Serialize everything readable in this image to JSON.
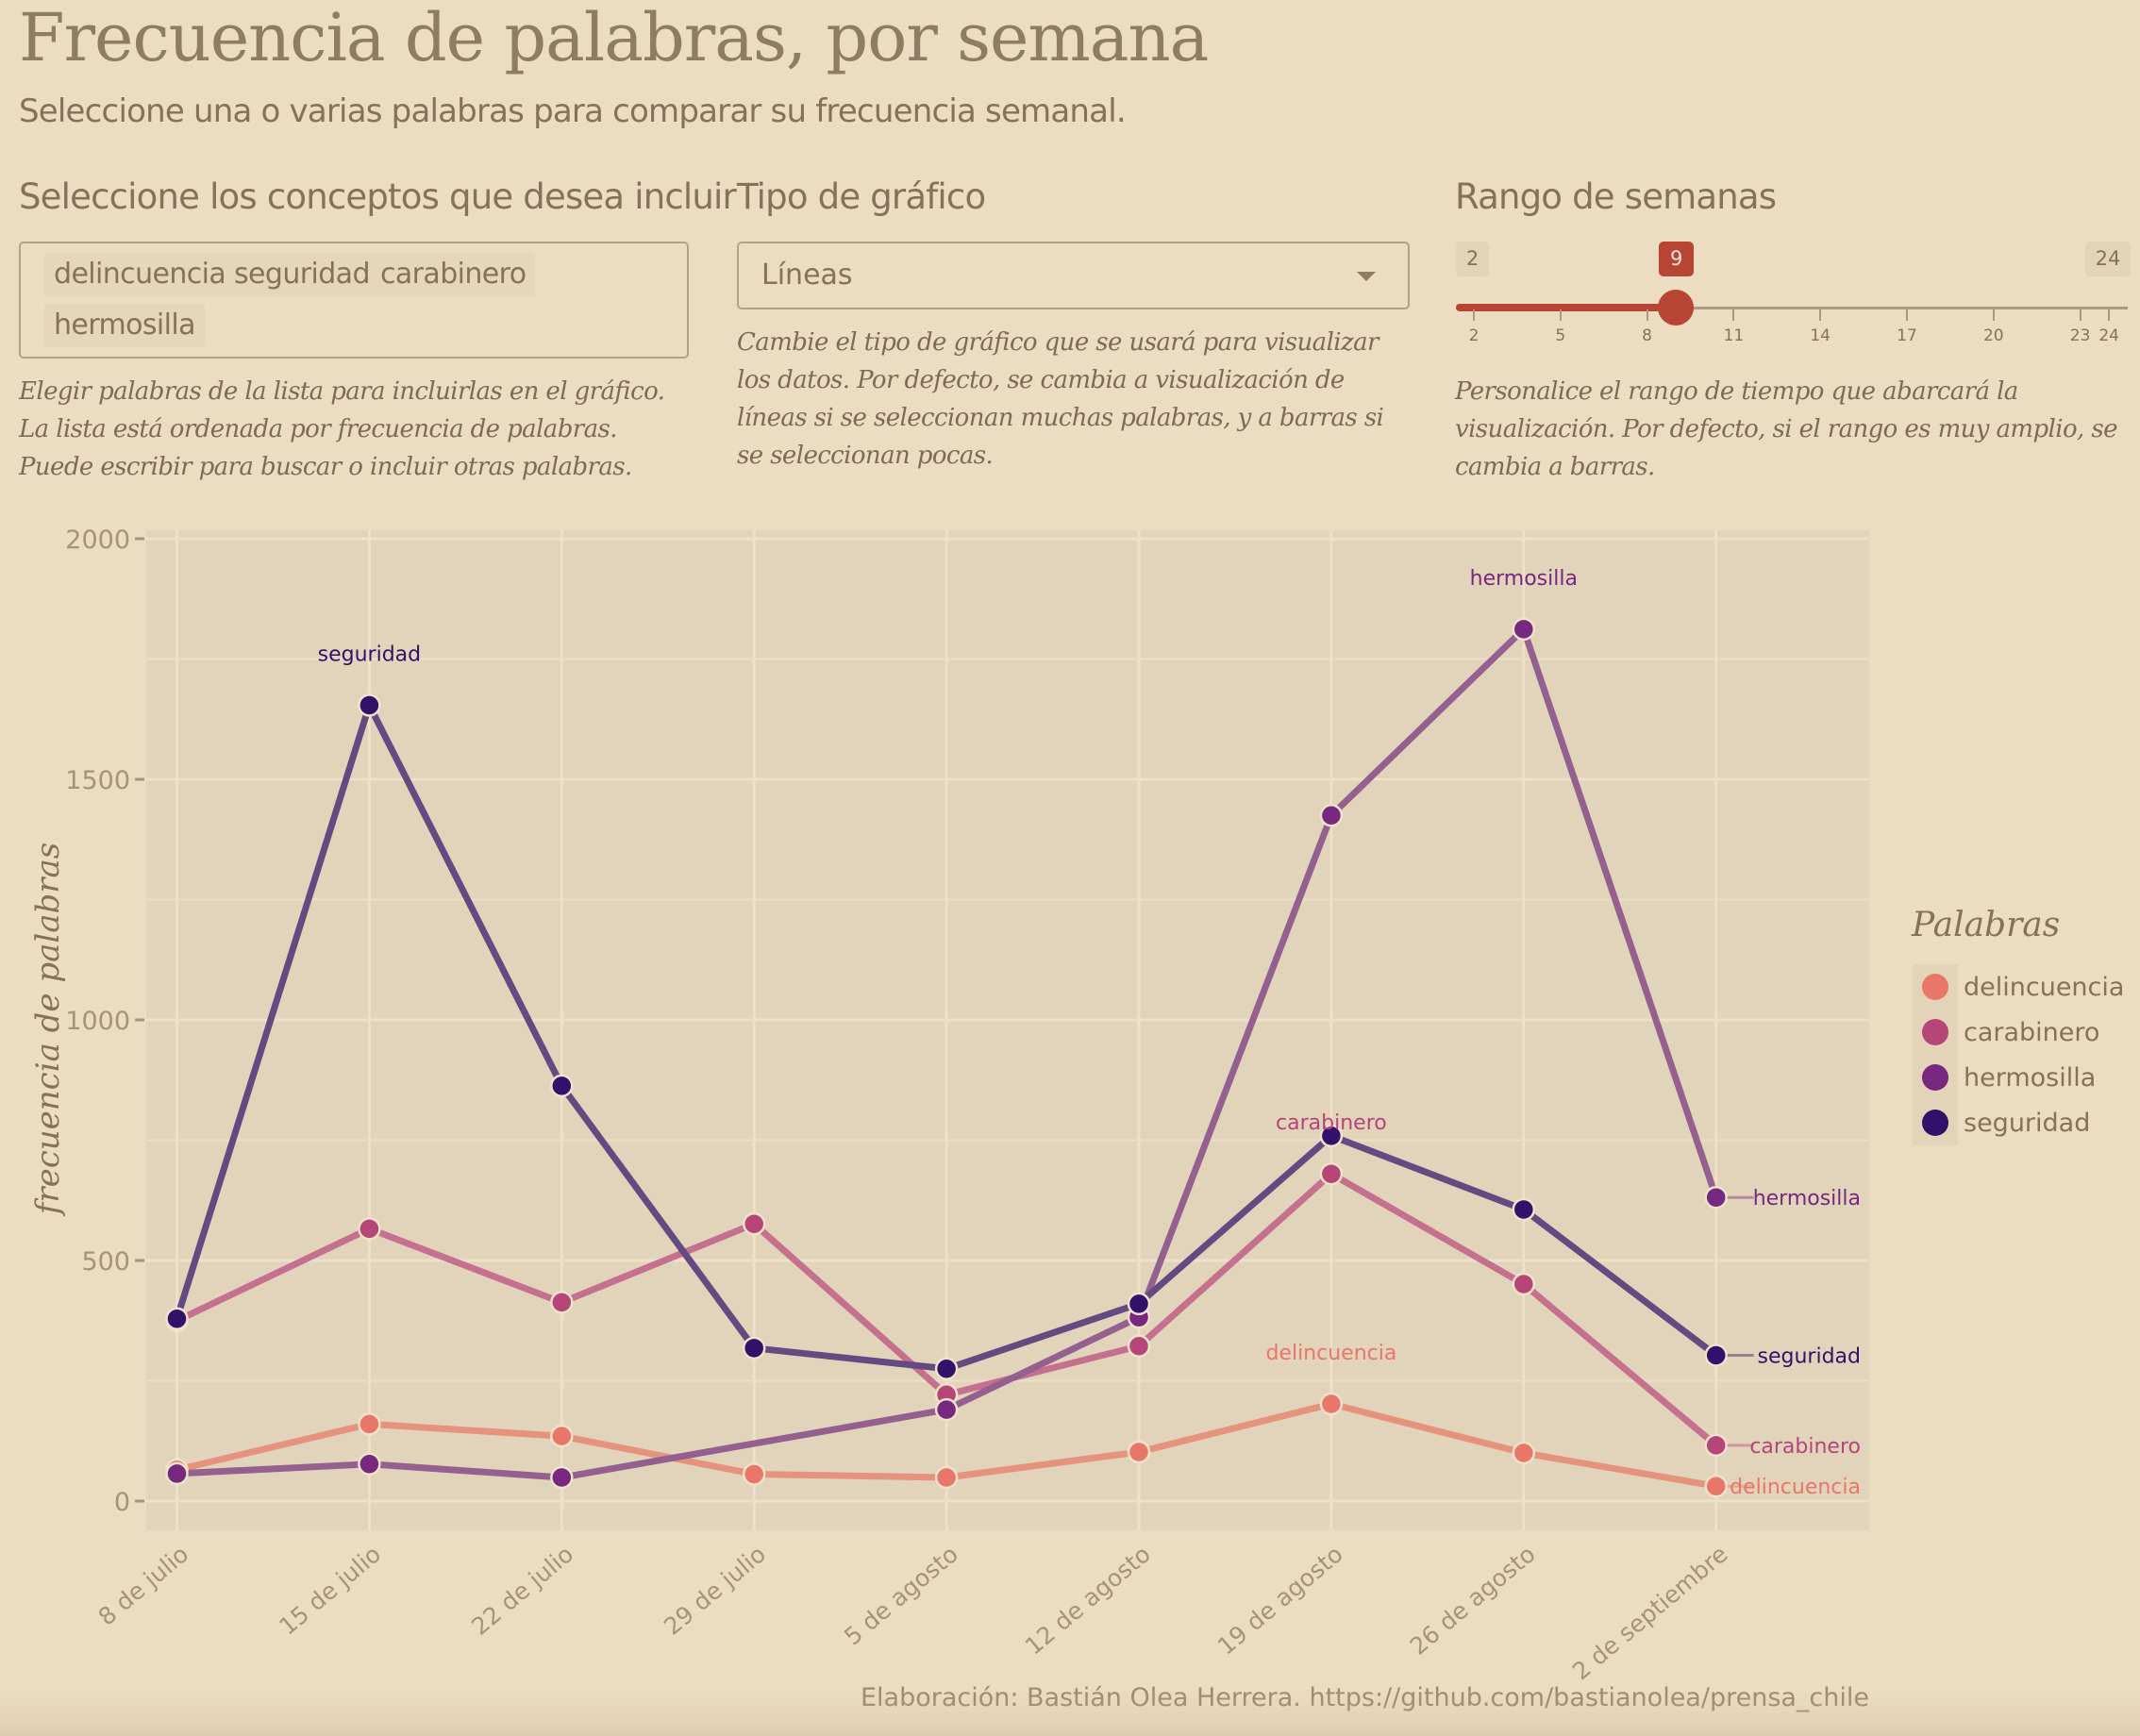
{
  "header": {
    "title": "Frecuencia de palabras, por semana",
    "subtitle": "Seleccione una o varias palabras para comparar su frecuencia semanal."
  },
  "controls": {
    "concepts": {
      "label": "Seleccione los conceptos que desea incluir",
      "tags": [
        "delincuencia",
        "seguridad",
        "carabinero",
        "hermosilla"
      ],
      "help": "Elegir palabras de la lista para incluirlas en el gráfico. La lista está ordenada por frecuencia de palabras. Puede escribir para buscar o incluir otras palabras."
    },
    "chart_type": {
      "label": "Tipo de gráfico",
      "selected": "Líneas",
      "help": "Cambie el tipo de gráfico que se usará para visualizar los datos. Por defecto, se cambia a visualización de líneas si se seleccionan muchas palabras, y a barras si se seleccionan pocas."
    },
    "week_range": {
      "label": "Rango de semanas",
      "min": 2,
      "max": 24,
      "value": 9,
      "min_label": "2",
      "max_label": "24",
      "value_label": "9",
      "ticks": [
        2,
        5,
        8,
        11,
        14,
        17,
        20,
        23,
        24
      ],
      "help": "Personalice el rango de tiempo que abarcará la visualización. Por defecto, si el rango es muy amplio, se cambia a barras.",
      "accent_color": "#b84434"
    }
  },
  "chart_data": {
    "type": "line",
    "title": "",
    "xlabel": "",
    "ylabel": "frecuencia de palabras",
    "ylim": [
      -50,
      2000
    ],
    "yticks": [
      0,
      500,
      1000,
      1500,
      2000
    ],
    "grid": true,
    "categories": [
      "8 de julio",
      "15 de julio",
      "22 de julio",
      "29 de julio",
      "5 de agosto",
      "12 de agosto",
      "19 de agosto",
      "26 de agosto",
      "2 de septiembre"
    ],
    "series": [
      {
        "name": "delincuencia",
        "color": "#e8776a",
        "line_color": "#e5937c",
        "values": [
          65,
          160,
          135,
          56,
          49,
          102,
          202,
          100,
          31
        ],
        "peak_label_index": 6
      },
      {
        "name": "carabinero",
        "color": "#b64578",
        "line_color": "#c4708e",
        "values": [
          375,
          566,
          413,
          576,
          221,
          322,
          680,
          451,
          116
        ],
        "peak_label_index": 6
      },
      {
        "name": "hermosilla",
        "color": "#76297e",
        "line_color": "#94608f",
        "values": [
          57,
          77,
          49,
          null,
          190,
          382,
          1425,
          1812,
          631
        ],
        "peak_label_index": 7
      },
      {
        "name": "seguridad",
        "color": "#33116b",
        "line_color": "#654a82",
        "values": [
          379,
          1654,
          863,
          318,
          275,
          410,
          759,
          606,
          303
        ],
        "peak_label_index": 1
      }
    ],
    "legend": {
      "title": "Palabras",
      "position": "right",
      "entries": [
        "delincuencia",
        "carabinero",
        "hermosilla",
        "seguridad"
      ]
    },
    "end_labels": [
      "hermosilla",
      "seguridad",
      "carabinero",
      "delincuencia"
    ],
    "caption": "Elaboración: Bastián Olea Herrera. https://github.com/bastianolea/prensa_chile"
  }
}
